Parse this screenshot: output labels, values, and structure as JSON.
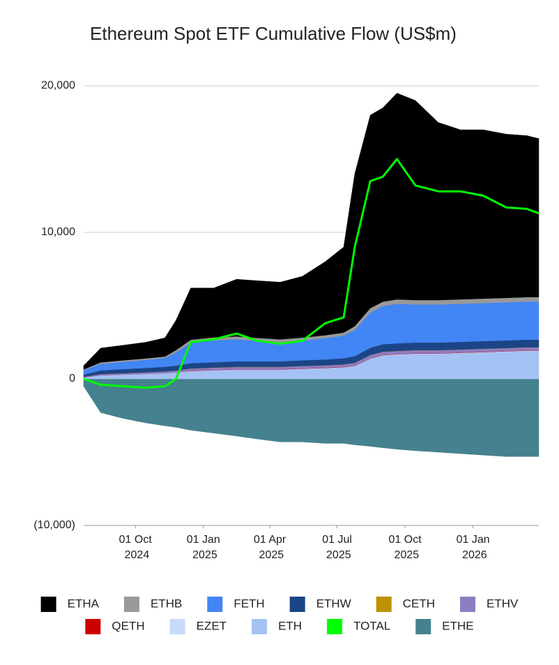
{
  "chart_data": {
    "type": "area",
    "stacked": true,
    "title": "Ethereum Spot ETF Cumulative Flow (US$m)",
    "x": [
      "2024-07-23",
      "2024-08-15",
      "2024-09-15",
      "2024-10-15",
      "2024-11-10",
      "2024-11-25",
      "2024-12-15",
      "2025-01-15",
      "2025-02-15",
      "2025-03-15",
      "2025-04-15",
      "2025-05-15",
      "2025-06-15",
      "2025-07-10",
      "2025-07-25",
      "2025-08-15",
      "2025-09-01",
      "2025-09-20",
      "2025-10-15",
      "2025-11-15",
      "2025-12-15",
      "2026-01-15",
      "2026-02-15",
      "2026-03-15",
      "2026-03-31"
    ],
    "xlim": [
      "2024-07-23",
      "2026-03-31"
    ],
    "xticks": [
      {
        "value": "2024-10-01",
        "label": "01 Oct 2024"
      },
      {
        "value": "2025-01-01",
        "label": "01 Jan 2025"
      },
      {
        "value": "2025-04-01",
        "label": "01 Apr 2025"
      },
      {
        "value": "2025-07-01",
        "label": "01 Jul 2025"
      },
      {
        "value": "2025-10-01",
        "label": "01 Oct 2025"
      },
      {
        "value": "2026-01-01",
        "label": "01 Jan 2026"
      }
    ],
    "ylim": [
      -10000,
      20000
    ],
    "yticks": [
      {
        "value": -10000,
        "label": "(10,000)"
      },
      0,
      {
        "value": 10000,
        "label": "10,000"
      },
      {
        "value": 20000,
        "label": "20,000"
      }
    ],
    "grid": true,
    "legend": "bottom",
    "series": [
      {
        "name": "ETHA",
        "color": "#000000",
        "values": [
          250,
          970,
          1030,
          1100,
          1270,
          2040,
          3530,
          3360,
          3900,
          3900,
          3900,
          4180,
          5020,
          5840,
          10400,
          13170,
          13230,
          14070,
          13620,
          12120,
          11570,
          11520,
          11170,
          11020,
          10820
        ]
      },
      {
        "name": "ETHB",
        "color": "#999999",
        "values": [
          50,
          100,
          100,
          100,
          100,
          150,
          200,
          200,
          200,
          200,
          200,
          200,
          200,
          200,
          250,
          300,
          300,
          300,
          300,
          300,
          300,
          300,
          300,
          300,
          300
        ]
      },
      {
        "name": "FETH",
        "color": "#4285f4",
        "values": [
          300,
          450,
          500,
          550,
          600,
          900,
          1400,
          1500,
          1500,
          1400,
          1300,
          1350,
          1450,
          1550,
          1800,
          2400,
          2600,
          2700,
          2600,
          2600,
          2600,
          2600,
          2600,
          2600,
          2600
        ]
      },
      {
        "name": "ETHW",
        "color": "#1c4587",
        "values": [
          150,
          250,
          280,
          300,
          320,
          340,
          360,
          370,
          380,
          380,
          380,
          390,
          400,
          420,
          450,
          500,
          520,
          520,
          520,
          520,
          520,
          520,
          520,
          520,
          520
        ]
      },
      {
        "name": "CETH",
        "color": "#bf9000",
        "values": [
          0,
          0,
          0,
          0,
          0,
          0,
          10,
          10,
          10,
          10,
          10,
          10,
          10,
          10,
          10,
          10,
          10,
          10,
          10,
          10,
          10,
          10,
          10,
          10,
          10
        ]
      },
      {
        "name": "ETHV",
        "color": "#8e7cc3",
        "values": [
          50,
          80,
          90,
          100,
          110,
          120,
          130,
          140,
          140,
          140,
          140,
          150,
          150,
          160,
          170,
          200,
          200,
          200,
          200,
          200,
          200,
          200,
          200,
          200,
          200
        ]
      },
      {
        "name": "QETH",
        "color": "#cc0000",
        "values": [
          0,
          0,
          0,
          0,
          0,
          0,
          20,
          20,
          20,
          20,
          20,
          20,
          20,
          20,
          20,
          20,
          20,
          20,
          20,
          20,
          20,
          20,
          20,
          20,
          20
        ]
      },
      {
        "name": "EZET",
        "color": "#c9daf8",
        "values": [
          0,
          0,
          0,
          0,
          0,
          0,
          0,
          0,
          0,
          0,
          0,
          0,
          0,
          0,
          0,
          0,
          20,
          30,
          30,
          30,
          30,
          30,
          30,
          30,
          30
        ]
      },
      {
        "name": "ETH",
        "color": "#a4c2f4",
        "values": [
          100,
          250,
          300,
          350,
          400,
          450,
          550,
          600,
          650,
          650,
          650,
          700,
          750,
          800,
          900,
          1400,
          1600,
          1650,
          1700,
          1700,
          1750,
          1800,
          1850,
          1900,
          1900
        ]
      },
      {
        "name": "TOTAL",
        "color": "#00ff00",
        "type": "line",
        "values": [
          0,
          -400,
          -500,
          -600,
          -500,
          0,
          2500,
          2700,
          3100,
          2600,
          2400,
          2600,
          3800,
          4200,
          9000,
          13500,
          13800,
          15000,
          13200,
          12800,
          12800,
          12500,
          11700,
          11600,
          11300
        ]
      },
      {
        "name": "ETHE",
        "color": "#45818e",
        "values": [
          -500,
          -2300,
          -2700,
          -3000,
          -3200,
          -3300,
          -3500,
          -3700,
          -3900,
          -4100,
          -4300,
          -4300,
          -4400,
          -4400,
          -4500,
          -4600,
          -4700,
          -4800,
          -4900,
          -5000,
          -5100,
          -5200,
          -5300,
          -5300,
          -5300
        ]
      }
    ]
  }
}
